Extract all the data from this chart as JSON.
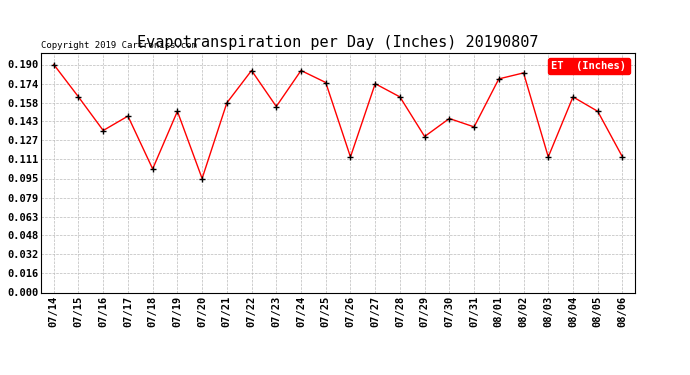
{
  "title": "Evapotranspiration per Day (Inches) 20190807",
  "copyright": "Copyright 2019 Cartronics.com",
  "legend_label": "ET  (Inches)",
  "x_labels": [
    "07/14",
    "07/15",
    "07/16",
    "07/17",
    "07/18",
    "07/19",
    "07/20",
    "07/21",
    "07/22",
    "07/23",
    "07/24",
    "07/25",
    "07/26",
    "07/27",
    "07/28",
    "07/29",
    "07/30",
    "07/31",
    "08/01",
    "08/02",
    "08/03",
    "08/04",
    "08/05",
    "08/06"
  ],
  "y_values": [
    0.19,
    0.163,
    0.135,
    0.147,
    0.103,
    0.151,
    0.095,
    0.158,
    0.185,
    0.155,
    0.185,
    0.175,
    0.113,
    0.174,
    0.163,
    0.13,
    0.145,
    0.138,
    0.178,
    0.183,
    0.113,
    0.163,
    0.151,
    0.113
  ],
  "y_ticks": [
    0.0,
    0.016,
    0.032,
    0.048,
    0.063,
    0.079,
    0.095,
    0.111,
    0.127,
    0.143,
    0.158,
    0.174,
    0.19
  ],
  "ylim": [
    0.0,
    0.2
  ],
  "line_color": "#ff0000",
  "marker_color": "#000000",
  "grid_color": "#bbbbbb",
  "bg_color": "#ffffff",
  "title_fontsize": 11,
  "tick_fontsize": 7.5,
  "copyright_fontsize": 6.5,
  "legend_fontsize": 7.5
}
